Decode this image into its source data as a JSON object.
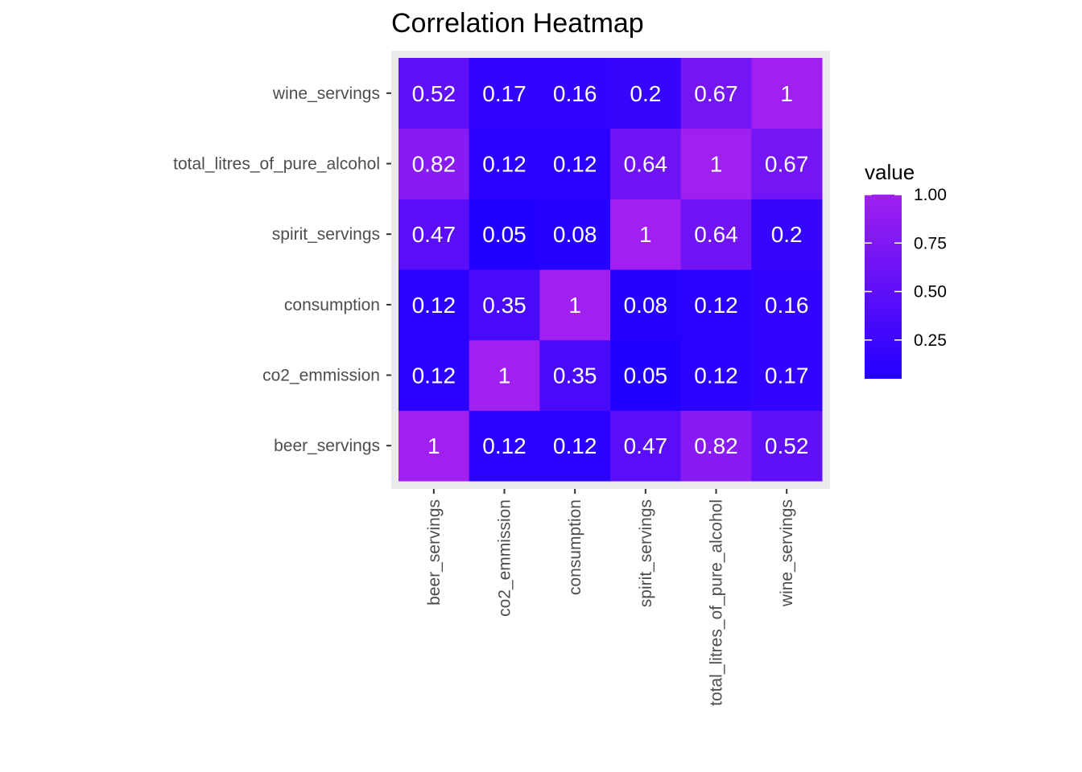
{
  "chart_data": {
    "type": "heatmap",
    "title": "Correlation Heatmap",
    "xlabel": "",
    "ylabel": "",
    "x_categories": [
      "beer_servings",
      "co2_emmission",
      "consumption",
      "spirit_servings",
      "total_litres_of_pure_alcohol",
      "wine_servings"
    ],
    "y_categories": [
      "beer_servings",
      "co2_emmission",
      "consumption",
      "spirit_servings",
      "total_litres_of_pure_alcohol",
      "wine_servings"
    ],
    "values": [
      [
        1,
        0.12,
        0.12,
        0.47,
        0.82,
        0.52
      ],
      [
        0.12,
        1,
        0.35,
        0.05,
        0.12,
        0.17
      ],
      [
        0.12,
        0.35,
        1,
        0.08,
        0.12,
        0.16
      ],
      [
        0.47,
        0.05,
        0.08,
        1,
        0.64,
        0.2
      ],
      [
        0.82,
        0.12,
        0.12,
        0.64,
        1,
        0.67
      ],
      [
        0.52,
        0.17,
        0.16,
        0.2,
        0.67,
        1
      ]
    ],
    "value_labels": [
      [
        "1",
        "0.12",
        "0.12",
        "0.47",
        "0.82",
        "0.52"
      ],
      [
        "0.12",
        "1",
        "0.35",
        "0.05",
        "0.12",
        "0.17"
      ],
      [
        "0.12",
        "0.35",
        "1",
        "0.08",
        "0.12",
        "0.16"
      ],
      [
        "0.47",
        "0.05",
        "0.08",
        "1",
        "0.64",
        "0.2"
      ],
      [
        "0.82",
        "0.12",
        "0.12",
        "0.64",
        "1",
        "0.67"
      ],
      [
        "0.52",
        "0.17",
        "0.16",
        "0.2",
        "0.67",
        "1"
      ]
    ],
    "legend": {
      "title": "value",
      "position": "right",
      "ticks": [
        1.0,
        0.75,
        0.5,
        0.25
      ],
      "tick_labels": [
        "1.00",
        "0.75",
        "0.50",
        "0.25"
      ],
      "range": [
        0.05,
        1.0
      ]
    },
    "colors": {
      "low": "#2200ff",
      "high": "#a020f0",
      "panel_background": "#ebebeb",
      "cell_text": "#ffffff"
    },
    "grid": true
  }
}
